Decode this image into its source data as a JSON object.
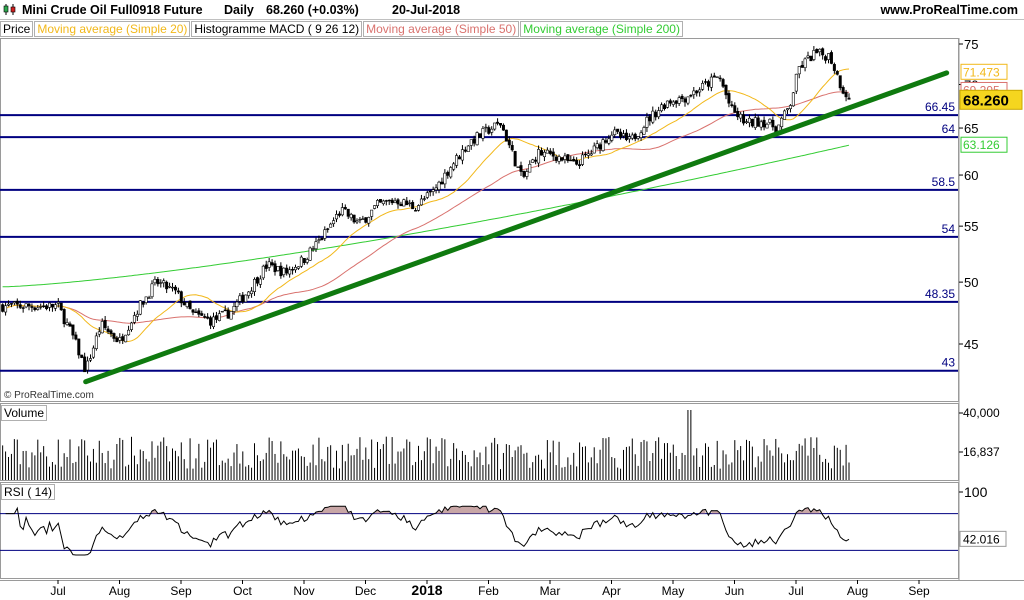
{
  "header": {
    "instrument": "Mini Crude Oil Full0918 Future",
    "timeframe": "Daily",
    "quote": "68.260 (+0.03%)",
    "date": "20-Jul-2018",
    "website": "www.ProRealTime.com"
  },
  "legend": [
    {
      "label": "Price",
      "color": "#000000"
    },
    {
      "label": "Moving average (Simple 20)",
      "color": "#f2b81a"
    },
    {
      "label": "Histogramme MACD ( 9 26 12)",
      "color": "#000000"
    },
    {
      "label": "Moving average (Simple 50)",
      "color": "#d9726e"
    },
    {
      "label": "Moving average (Simple 200)",
      "color": "#33cc33"
    }
  ],
  "panels": {
    "volume_label": "Volume",
    "rsi_label": "RSI ( 14)"
  },
  "watermark": "© ProRealTime.com",
  "colors": {
    "level_line": "#000080",
    "trendline": "#0f7a0f",
    "ma20": "#f2b81a",
    "ma50": "#d9726e",
    "ma200": "#33cc33",
    "price_badge": "#f5d61f",
    "rsi_fill": "#b08080"
  },
  "chart_data": {
    "type": "candlestick",
    "x_tick_labels": [
      "Jul",
      "Aug",
      "Sep",
      "Oct",
      "Nov",
      "Dec",
      "2018",
      "Feb",
      "Mar",
      "Apr",
      "May",
      "Jun",
      "Jul",
      "Aug",
      "Sep"
    ],
    "y_tick_labels": [
      "75",
      "70",
      "65",
      "60",
      "55",
      "50",
      "45"
    ],
    "price_axis_scale": "log",
    "horizontal_levels": [
      {
        "value": 66.45,
        "label": "66.45"
      },
      {
        "value": 64,
        "label": "64"
      },
      {
        "value": 58.5,
        "label": "58.5"
      },
      {
        "value": 54,
        "label": "54"
      },
      {
        "value": 48.35,
        "label": "48.35"
      },
      {
        "value": 43,
        "label": "43"
      }
    ],
    "last_price": {
      "value": 68.26,
      "label": "68.260"
    },
    "ma_values": [
      {
        "name": "Moving average (Simple 20)",
        "value": 71.473,
        "label": "71.473"
      },
      {
        "name": "Moving average (Simple 50)",
        "value": 69.295,
        "label": "69.295"
      },
      {
        "name": "Moving average (Simple 200)",
        "value": 63.126,
        "label": "63.126"
      }
    ],
    "trendline": {
      "start": {
        "month_index": 0.45,
        "value": 42.2
      },
      "end": {
        "month_index": 14.45,
        "value": 71.4
      }
    },
    "close_anchors": [
      [
        0,
        48.0
      ],
      [
        0.25,
        45.5
      ],
      [
        0.45,
        43.0
      ],
      [
        0.7,
        46.5
      ],
      [
        1.0,
        45.2
      ],
      [
        1.3,
        47.8
      ],
      [
        1.6,
        50.0
      ],
      [
        1.9,
        49.2
      ],
      [
        2.2,
        47.3
      ],
      [
        2.5,
        46.8
      ],
      [
        2.8,
        47.5
      ],
      [
        3.1,
        49.3
      ],
      [
        3.4,
        51.5
      ],
      [
        3.7,
        50.8
      ],
      [
        4.0,
        52.0
      ],
      [
        4.3,
        54.0
      ],
      [
        4.6,
        56.5
      ],
      [
        4.9,
        55.2
      ],
      [
        5.2,
        57.0
      ],
      [
        5.5,
        57.5
      ],
      [
        5.8,
        56.8
      ],
      [
        6.1,
        58.3
      ],
      [
        6.4,
        61.0
      ],
      [
        6.7,
        63.5
      ],
      [
        7.0,
        64.8
      ],
      [
        7.2,
        65.5
      ],
      [
        7.4,
        62.0
      ],
      [
        7.55,
        59.5
      ],
      [
        7.8,
        62.3
      ],
      [
        8.1,
        62.0
      ],
      [
        8.4,
        61.0
      ],
      [
        8.7,
        62.5
      ],
      [
        9.0,
        64.5
      ],
      [
        9.3,
        63.5
      ],
      [
        9.6,
        66.0
      ],
      [
        9.9,
        68.0
      ],
      [
        10.2,
        68.5
      ],
      [
        10.5,
        69.8
      ],
      [
        10.75,
        71.0
      ],
      [
        10.95,
        67.0
      ],
      [
        11.2,
        65.5
      ],
      [
        11.45,
        65.8
      ],
      [
        11.7,
        65.0
      ],
      [
        11.9,
        67.5
      ],
      [
        12.05,
        72.0
      ],
      [
        12.3,
        73.8
      ],
      [
        12.55,
        73.5
      ],
      [
        12.75,
        69.5
      ],
      [
        12.9,
        68.26
      ]
    ],
    "volume_axis_labels": [
      "40,000",
      "16,837"
    ],
    "last_volume": 16837,
    "rsi": {
      "period": 14,
      "axis_labels": [
        "100",
        "42.016"
      ],
      "last_value": 42.016,
      "upper_band": 70,
      "lower_band": 30
    }
  }
}
